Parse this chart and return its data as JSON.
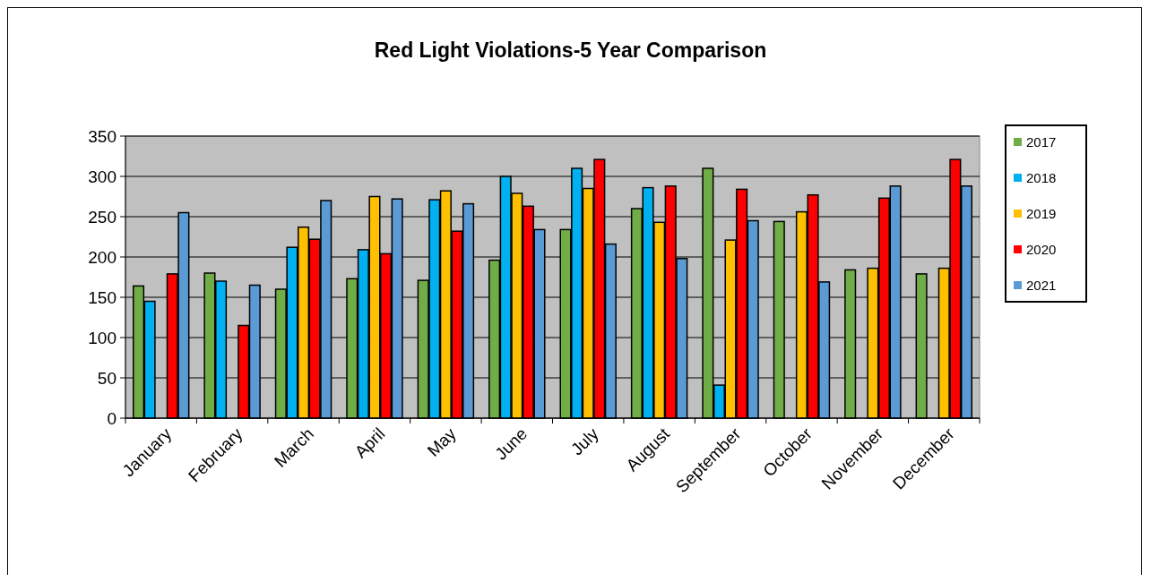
{
  "chart_data": {
    "type": "bar",
    "title": "Red Light Violations-5 Year Comparison",
    "categories": [
      "January",
      "February",
      "March",
      "April",
      "May",
      "June",
      "July",
      "August",
      "September",
      "October",
      "November",
      "December"
    ],
    "series": [
      {
        "name": "2017",
        "color": "#70ad47",
        "values": [
          164,
          180,
          160,
          173,
          171,
          196,
          234,
          260,
          310,
          244,
          184,
          179
        ]
      },
      {
        "name": "2018",
        "color": "#00b0f0",
        "values": [
          145,
          170,
          212,
          209,
          271,
          300,
          310,
          286,
          41,
          null,
          null,
          null
        ]
      },
      {
        "name": "2019",
        "color": "#ffc000",
        "values": [
          null,
          null,
          237,
          275,
          282,
          279,
          285,
          243,
          221,
          256,
          186,
          186
        ]
      },
      {
        "name": "2020",
        "color": "#ff0000",
        "values": [
          179,
          115,
          222,
          204,
          232,
          263,
          321,
          288,
          284,
          277,
          273,
          321
        ]
      },
      {
        "name": "2021",
        "color": "#5b9bd5",
        "values": [
          255,
          165,
          270,
          272,
          266,
          234,
          216,
          198,
          245,
          169,
          288,
          288
        ]
      }
    ],
    "ylim": [
      0,
      350
    ],
    "yticks": [
      0,
      50,
      100,
      150,
      200,
      250,
      300,
      350
    ],
    "grid": "y",
    "legend": "right"
  }
}
